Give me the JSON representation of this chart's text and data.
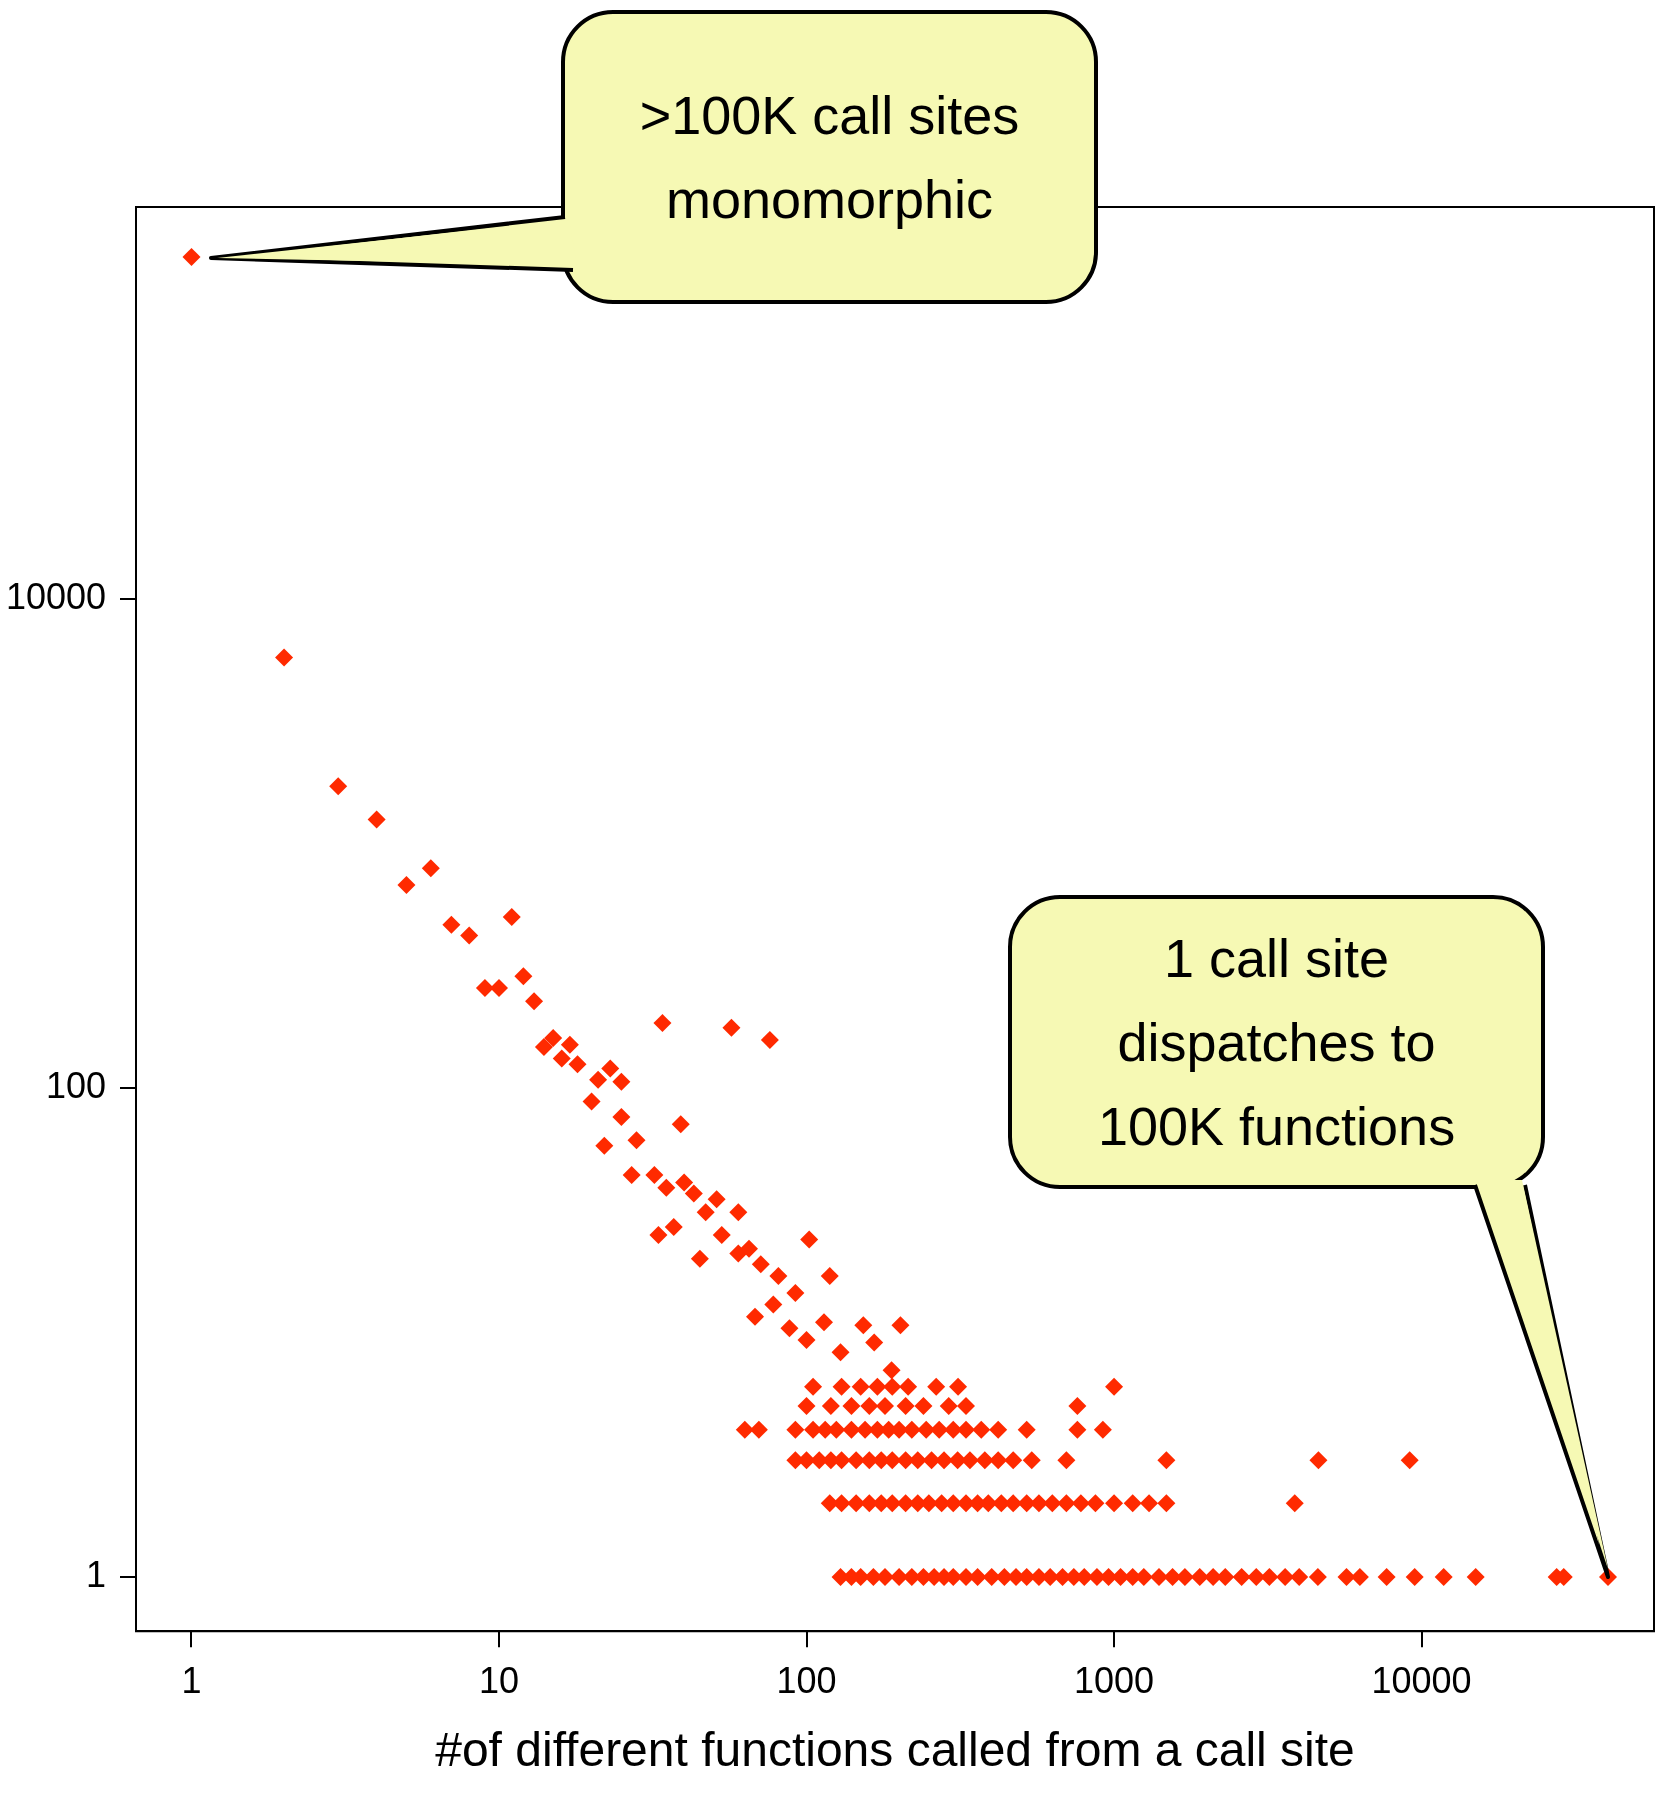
{
  "chart_data": {
    "type": "scatter",
    "xlabel": "#of different functions called from a call site",
    "log": "xy",
    "grid": false,
    "legend": false,
    "marker": "diamond",
    "xlim": [
      0.66,
      57000
    ],
    "ylim": [
      0.6,
      400000
    ],
    "xticks": [
      1,
      10,
      100,
      1000,
      10000
    ],
    "yticks": [
      1,
      100,
      10000
    ],
    "annotations": [
      ">100K call sites\nmonomorphic",
      {
        "text": "1 call site\ndispatches to\n100K functions",
        "x": 40400,
        "y": 1
      }
    ],
    "series": [
      {
        "color": "#ff2a00",
        "x": [
          1,
          2,
          3,
          4,
          5,
          6,
          7,
          8,
          9,
          10,
          11,
          12,
          13,
          14,
          15,
          16,
          17,
          18,
          20,
          21,
          23,
          22,
          25,
          25,
          27,
          28,
          34,
          39,
          57,
          76,
          32,
          35,
          40,
          43,
          47,
          51,
          60,
          33,
          37,
          45,
          53,
          60,
          65,
          71,
          81,
          92,
          102,
          119,
          68,
          78,
          88,
          100,
          114,
          129,
          153,
          202,
          166,
          189,
          214,
          264,
          311,
          760,
          1000
        ],
        "values": [
          250000,
          5750,
          1710,
          1250,
          675,
          790,
          464,
          420,
          256,
          256,
          500,
          286,
          226,
          147,
          160,
          132,
          150,
          125,
          88,
          108,
          120,
          58,
          106,
          76,
          44,
          61,
          184,
          71,
          176,
          157,
          44,
          39,
          41,
          37,
          31,
          35,
          31,
          25,
          27,
          20,
          25,
          21,
          22,
          19,
          17,
          14.5,
          24,
          17,
          11.6,
          13,
          10.4,
          9.3,
          11,
          8.3,
          10.7,
          10.7,
          9.1,
          7,
          6,
          6,
          6,
          5,
          6
        ]
      },
      {
        "color": "#ff2a00",
        "x": [
          129,
          140,
          150,
          165,
          180,
          200,
          220,
          240,
          260,
          280,
          300,
          330,
          360,
          400,
          440,
          480,
          520,
          570,
          620,
          680,
          740,
          800,
          880,
          960,
          1050,
          1150,
          1250,
          1400,
          1550,
          1700,
          1900,
          2100,
          2300,
          2600,
          2900,
          3200,
          3600,
          4000,
          4600,
          5700,
          6300,
          7700,
          9500,
          11800,
          15000,
          27500,
          29000,
          40400
        ],
        "values": [
          1,
          1,
          1,
          1,
          1,
          1,
          1,
          1,
          1,
          1,
          1,
          1,
          1,
          1,
          1,
          1,
          1,
          1,
          1,
          1,
          1,
          1,
          1,
          1,
          1,
          1,
          1,
          1,
          1,
          1,
          1,
          1,
          1,
          1,
          1,
          1,
          1,
          1,
          1,
          1,
          1,
          1,
          1,
          1,
          1,
          1,
          1,
          1
        ]
      },
      {
        "color": "#ff2a00",
        "x": [
          119,
          130,
          145,
          160,
          175,
          190,
          210,
          230,
          250,
          275,
          300,
          330,
          360,
          390,
          430,
          470,
          520,
          570,
          630,
          700,
          780,
          870,
          1000,
          1150,
          1300,
          1480,
          3870
        ],
        "values": [
          2,
          2,
          2,
          2,
          2,
          2,
          2,
          2,
          2,
          2,
          2,
          2,
          2,
          2,
          2,
          2,
          2,
          2,
          2,
          2,
          2,
          2,
          2,
          2,
          2,
          2,
          2
        ]
      },
      {
        "color": "#ff2a00",
        "x": [
          92,
          100,
          110,
          120,
          130,
          145,
          160,
          175,
          190,
          210,
          230,
          255,
          280,
          310,
          340,
          380,
          420,
          470,
          540,
          700,
          1480,
          4620,
          9150
        ],
        "values": [
          3,
          3,
          3,
          3,
          3,
          3,
          3,
          3,
          3,
          3,
          3,
          3,
          3,
          3,
          3,
          3,
          3,
          3,
          3,
          3,
          3,
          3,
          3
        ]
      },
      {
        "color": "#ff2a00",
        "x": [
          63,
          70,
          92,
          105,
          115,
          125,
          140,
          155,
          170,
          185,
          200,
          220,
          245,
          270,
          300,
          330,
          370,
          420,
          520,
          760,
          920
        ],
        "values": [
          4,
          4,
          4,
          4,
          4,
          4,
          4,
          4,
          4,
          4,
          4,
          4,
          4,
          4,
          4,
          4,
          4,
          4,
          4,
          4,
          4
        ]
      },
      {
        "color": "#ff2a00",
        "x": [
          100,
          120,
          140,
          160,
          180,
          210,
          240,
          290,
          330,
          105,
          130,
          150,
          170,
          190
        ],
        "values": [
          5,
          5,
          5,
          5,
          5,
          5,
          5,
          5,
          5,
          6,
          6,
          6,
          6,
          6
        ]
      }
    ]
  }
}
